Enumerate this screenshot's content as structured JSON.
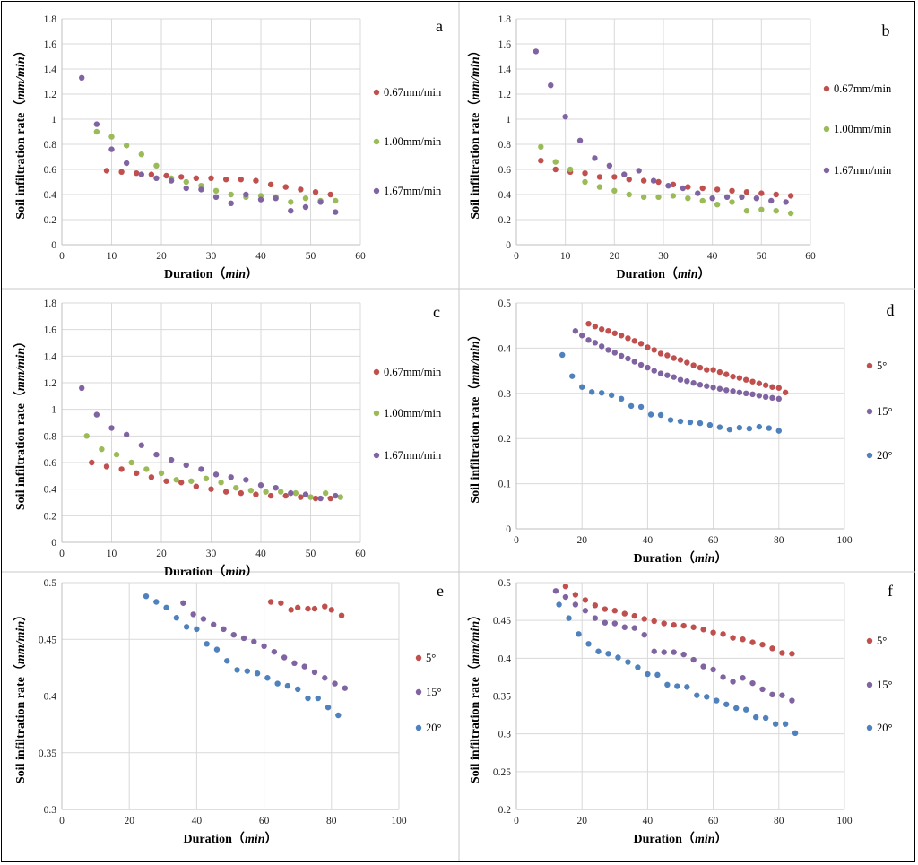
{
  "colors": {
    "red": "#C0504D",
    "green": "#9BBB59",
    "purple": "#8064A2",
    "blue": "#4F81BD"
  },
  "chart_data": [
    {
      "id": "a",
      "type": "scatter",
      "letter": "a",
      "xlabel": "Duration",
      "xunit": "min",
      "ylabel": "Soil infiltration rate",
      "yunit": "mm/min",
      "xlim": [
        0,
        60
      ],
      "xticks": [
        0,
        10,
        20,
        30,
        40,
        50,
        60
      ],
      "ylim": [
        0,
        1.8
      ],
      "yticks": [
        0,
        0.2,
        0.4,
        0.6,
        0.8,
        1,
        1.2,
        1.4,
        1.6,
        1.8
      ],
      "yticklabels": [
        "0",
        "0.2",
        "0.4",
        "0.6",
        "0.8",
        "1",
        "1.2",
        "1.4",
        "1.6",
        "1.8"
      ],
      "series": [
        {
          "name": "0.67mm/min",
          "color": "#C0504D",
          "x": [
            9,
            12,
            15,
            18,
            21,
            24,
            27,
            30,
            33,
            36,
            39,
            42,
            45,
            48,
            51,
            54
          ],
          "y": [
            0.59,
            0.58,
            0.57,
            0.56,
            0.55,
            0.54,
            0.53,
            0.53,
            0.52,
            0.52,
            0.51,
            0.48,
            0.46,
            0.44,
            0.42,
            0.4
          ]
        },
        {
          "name": "1.00mm/min",
          "color": "#9BBB59",
          "x": [
            7,
            10,
            13,
            16,
            19,
            22,
            25,
            28,
            31,
            34,
            37,
            40,
            43,
            46,
            49,
            52,
            55
          ],
          "y": [
            0.9,
            0.86,
            0.79,
            0.72,
            0.63,
            0.53,
            0.5,
            0.47,
            0.43,
            0.4,
            0.38,
            0.39,
            0.38,
            0.34,
            0.37,
            0.35,
            0.35
          ]
        },
        {
          "name": "1.67mm/min",
          "color": "#8064A2",
          "x": [
            4,
            7,
            10,
            13,
            16,
            19,
            22,
            25,
            28,
            31,
            34,
            37,
            40,
            43,
            46,
            49,
            52,
            55
          ],
          "y": [
            1.33,
            0.96,
            0.76,
            0.65,
            0.56,
            0.53,
            0.51,
            0.45,
            0.44,
            0.38,
            0.33,
            0.4,
            0.36,
            0.37,
            0.27,
            0.3,
            0.34,
            0.26
          ]
        }
      ]
    },
    {
      "id": "b",
      "type": "scatter",
      "letter": "b",
      "xlabel": "Duration",
      "xunit": "min",
      "ylabel": "Soil infiltration rate",
      "yunit": "mm/min",
      "xlim": [
        0,
        60
      ],
      "xticks": [
        0,
        10,
        20,
        30,
        40,
        50,
        60
      ],
      "ylim": [
        0,
        1.8
      ],
      "yticks": [
        0,
        0.2,
        0.4,
        0.6,
        0.8,
        1,
        1.2,
        1.4,
        1.6,
        1.8
      ],
      "yticklabels": [
        "0",
        "0.2",
        "0.4",
        "0.6",
        "0.8",
        "1",
        "1.2",
        "1.4",
        "1.6",
        "1.8"
      ],
      "series": [
        {
          "name": "0.67mm/min",
          "color": "#C0504D",
          "x": [
            5,
            8,
            11,
            14,
            17,
            20,
            23,
            26,
            29,
            32,
            35,
            38,
            41,
            44,
            47,
            50,
            53,
            56
          ],
          "y": [
            0.67,
            0.6,
            0.58,
            0.57,
            0.54,
            0.54,
            0.52,
            0.51,
            0.5,
            0.48,
            0.46,
            0.45,
            0.44,
            0.43,
            0.42,
            0.41,
            0.4,
            0.39
          ]
        },
        {
          "name": "1.00mm/min",
          "color": "#9BBB59",
          "x": [
            5,
            8,
            11,
            14,
            17,
            20,
            23,
            26,
            29,
            32,
            35,
            38,
            41,
            44,
            47,
            50,
            53,
            56
          ],
          "y": [
            0.78,
            0.66,
            0.6,
            0.5,
            0.46,
            0.43,
            0.4,
            0.38,
            0.38,
            0.39,
            0.37,
            0.35,
            0.32,
            0.34,
            0.27,
            0.28,
            0.27,
            0.25
          ]
        },
        {
          "name": "1.67mm/min",
          "color": "#8064A2",
          "x": [
            4,
            7,
            10,
            13,
            16,
            19,
            22,
            25,
            28,
            31,
            34,
            37,
            40,
            43,
            46,
            49,
            52,
            55
          ],
          "y": [
            1.54,
            1.27,
            1.02,
            0.83,
            0.69,
            0.63,
            0.56,
            0.59,
            0.51,
            0.47,
            0.45,
            0.41,
            0.37,
            0.38,
            0.38,
            0.37,
            0.35,
            0.34
          ]
        }
      ]
    },
    {
      "id": "c",
      "type": "scatter",
      "letter": "c",
      "xlabel": "Duration",
      "xunit": "min",
      "ylabel": "Soil infiltration rate",
      "yunit": "mm/min",
      "xlim": [
        0,
        60
      ],
      "xticks": [
        0,
        10,
        20,
        30,
        40,
        50,
        60
      ],
      "ylim": [
        0,
        1.8
      ],
      "yticks": [
        0,
        0.2,
        0.4,
        0.6,
        0.8,
        1,
        1.2,
        1.4,
        1.6,
        1.8
      ],
      "yticklabels": [
        "0",
        "0.2",
        "0.4",
        "0.6",
        "0.8",
        "1",
        "1.2",
        "1.4",
        "1.6",
        "1.8"
      ],
      "series": [
        {
          "name": "0.67mm/min",
          "color": "#C0504D",
          "x": [
            6,
            9,
            12,
            15,
            18,
            21,
            24,
            27,
            30,
            33,
            36,
            39,
            42,
            45,
            48,
            51,
            54
          ],
          "y": [
            0.6,
            0.57,
            0.55,
            0.52,
            0.49,
            0.46,
            0.45,
            0.42,
            0.4,
            0.38,
            0.37,
            0.36,
            0.35,
            0.35,
            0.34,
            0.33,
            0.33
          ]
        },
        {
          "name": "1.00mm/min",
          "color": "#9BBB59",
          "x": [
            5,
            8,
            11,
            14,
            17,
            20,
            23,
            26,
            29,
            32,
            35,
            38,
            41,
            44,
            47,
            50,
            53,
            56
          ],
          "y": [
            0.8,
            0.7,
            0.66,
            0.6,
            0.55,
            0.52,
            0.47,
            0.46,
            0.48,
            0.45,
            0.41,
            0.39,
            0.38,
            0.38,
            0.37,
            0.34,
            0.37,
            0.34
          ]
        },
        {
          "name": "1.67mm/min",
          "color": "#8064A2",
          "x": [
            4,
            7,
            10,
            13,
            16,
            19,
            22,
            25,
            28,
            31,
            34,
            37,
            40,
            43,
            46,
            49,
            52,
            55
          ],
          "y": [
            1.16,
            0.96,
            0.86,
            0.81,
            0.73,
            0.66,
            0.62,
            0.58,
            0.55,
            0.51,
            0.49,
            0.47,
            0.43,
            0.41,
            0.37,
            0.36,
            0.33,
            0.35
          ]
        }
      ]
    },
    {
      "id": "d",
      "type": "scatter",
      "letter": "d",
      "xlabel": "Duration",
      "xunit": "min",
      "ylabel": "Soil infiltration rate",
      "yunit": "mm/min",
      "xlim": [
        0,
        100
      ],
      "xticks": [
        0,
        20,
        40,
        60,
        80,
        100
      ],
      "ylim": [
        0,
        0.5
      ],
      "yticks": [
        0,
        0.1,
        0.2,
        0.3,
        0.4,
        0.5
      ],
      "yticklabels": [
        "0",
        "0.1",
        "0.2",
        "0.3",
        "0.4",
        "0.5"
      ],
      "series": [
        {
          "name": "5°",
          "color": "#C0504D",
          "x": [
            22,
            24,
            26,
            28,
            30,
            32,
            34,
            36,
            38,
            40,
            42,
            44,
            46,
            48,
            50,
            52,
            54,
            56,
            58,
            60,
            62,
            64,
            66,
            68,
            70,
            72,
            74,
            76,
            78,
            80,
            82
          ],
          "y": [
            0.454,
            0.448,
            0.442,
            0.438,
            0.433,
            0.428,
            0.422,
            0.416,
            0.41,
            0.402,
            0.396,
            0.388,
            0.384,
            0.378,
            0.374,
            0.368,
            0.362,
            0.357,
            0.352,
            0.352,
            0.347,
            0.342,
            0.337,
            0.334,
            0.33,
            0.326,
            0.322,
            0.318,
            0.314,
            0.312,
            0.302
          ]
        },
        {
          "name": "15°",
          "color": "#8064A2",
          "x": [
            18,
            20,
            22,
            24,
            26,
            28,
            30,
            32,
            34,
            36,
            38,
            40,
            42,
            44,
            46,
            48,
            50,
            52,
            54,
            56,
            58,
            60,
            62,
            64,
            66,
            68,
            70,
            72,
            74,
            76,
            78,
            80
          ],
          "y": [
            0.438,
            0.428,
            0.418,
            0.412,
            0.404,
            0.396,
            0.39,
            0.383,
            0.377,
            0.37,
            0.363,
            0.357,
            0.35,
            0.344,
            0.34,
            0.336,
            0.33,
            0.327,
            0.323,
            0.319,
            0.316,
            0.313,
            0.31,
            0.307,
            0.305,
            0.302,
            0.3,
            0.298,
            0.295,
            0.292,
            0.29,
            0.288
          ]
        },
        {
          "name": "20°",
          "color": "#4F81BD",
          "x": [
            14,
            17,
            20,
            23,
            26,
            29,
            32,
            35,
            38,
            41,
            44,
            47,
            50,
            53,
            56,
            59,
            62,
            65,
            68,
            71,
            74,
            77,
            80
          ],
          "y": [
            0.385,
            0.338,
            0.314,
            0.303,
            0.301,
            0.296,
            0.288,
            0.272,
            0.27,
            0.253,
            0.252,
            0.241,
            0.238,
            0.236,
            0.234,
            0.23,
            0.225,
            0.22,
            0.224,
            0.222,
            0.226,
            0.223,
            0.217
          ]
        }
      ]
    },
    {
      "id": "e",
      "type": "scatter",
      "letter": "e",
      "xlabel": "Duration",
      "xunit": "min",
      "ylabel": "Soil infiltration rate",
      "yunit": "mm/min",
      "xlim": [
        0,
        100
      ],
      "xticks": [
        0,
        20,
        40,
        60,
        80,
        100
      ],
      "ylim": [
        0.3,
        0.5
      ],
      "yticks": [
        0.3,
        0.35,
        0.4,
        0.45,
        0.5
      ],
      "yticklabels": [
        "0.3",
        "0.35",
        "0.4",
        "0.45",
        "0.5"
      ],
      "series": [
        {
          "name": "5°",
          "color": "#C0504D",
          "x": [
            62,
            65,
            68,
            70,
            73,
            75,
            78,
            80,
            83
          ],
          "y": [
            0.483,
            0.482,
            0.476,
            0.478,
            0.477,
            0.477,
            0.479,
            0.476,
            0.471
          ]
        },
        {
          "name": "15°",
          "color": "#8064A2",
          "x": [
            36,
            39,
            42,
            45,
            48,
            51,
            54,
            57,
            60,
            63,
            66,
            69,
            72,
            75,
            78,
            81,
            84
          ],
          "y": [
            0.482,
            0.472,
            0.468,
            0.463,
            0.459,
            0.454,
            0.451,
            0.448,
            0.444,
            0.439,
            0.434,
            0.429,
            0.426,
            0.421,
            0.416,
            0.411,
            0.407
          ]
        },
        {
          "name": "20°",
          "color": "#4F81BD",
          "x": [
            25,
            28,
            31,
            34,
            37,
            40,
            43,
            46,
            49,
            52,
            55,
            58,
            61,
            64,
            67,
            70,
            73,
            76,
            79,
            82
          ],
          "y": [
            0.488,
            0.483,
            0.478,
            0.469,
            0.461,
            0.459,
            0.446,
            0.441,
            0.431,
            0.423,
            0.422,
            0.42,
            0.416,
            0.411,
            0.409,
            0.406,
            0.398,
            0.398,
            0.39,
            0.383
          ]
        }
      ]
    },
    {
      "id": "f",
      "type": "scatter",
      "letter": "f",
      "xlabel": "Duration",
      "xunit": "min",
      "ylabel": "Soil infiltration rate",
      "yunit": "mm/min",
      "xlim": [
        0,
        100
      ],
      "xticks": [
        0,
        20,
        40,
        60,
        80,
        100
      ],
      "ylim": [
        0.2,
        0.5
      ],
      "yticks": [
        0.2,
        0.25,
        0.3,
        0.35,
        0.4,
        0.45,
        0.5
      ],
      "yticklabels": [
        "0.2",
        "0.25",
        "0.3",
        "0.35",
        "0.4",
        "0.45",
        "0.5"
      ],
      "series": [
        {
          "name": "5°",
          "color": "#C0504D",
          "x": [
            15,
            18,
            21,
            24,
            27,
            30,
            33,
            36,
            39,
            42,
            45,
            48,
            51,
            54,
            57,
            60,
            63,
            66,
            69,
            72,
            75,
            78,
            81,
            84
          ],
          "y": [
            0.495,
            0.484,
            0.477,
            0.47,
            0.465,
            0.463,
            0.459,
            0.456,
            0.452,
            0.449,
            0.446,
            0.444,
            0.443,
            0.441,
            0.438,
            0.434,
            0.432,
            0.427,
            0.425,
            0.421,
            0.418,
            0.413,
            0.407,
            0.406
          ]
        },
        {
          "name": "15°",
          "color": "#8064A2",
          "x": [
            12,
            15,
            18,
            21,
            24,
            27,
            30,
            33,
            36,
            39,
            42,
            45,
            48,
            51,
            54,
            57,
            60,
            63,
            66,
            69,
            72,
            75,
            78,
            81,
            84
          ],
          "y": [
            0.489,
            0.481,
            0.471,
            0.463,
            0.453,
            0.447,
            0.446,
            0.441,
            0.44,
            0.431,
            0.409,
            0.408,
            0.408,
            0.405,
            0.398,
            0.389,
            0.385,
            0.375,
            0.369,
            0.374,
            0.367,
            0.359,
            0.352,
            0.351,
            0.344
          ]
        },
        {
          "name": "20°",
          "color": "#4F81BD",
          "x": [
            13,
            16,
            19,
            22,
            25,
            28,
            31,
            34,
            37,
            40,
            43,
            46,
            49,
            52,
            55,
            58,
            61,
            64,
            67,
            70,
            73,
            76,
            79,
            82,
            85
          ],
          "y": [
            0.471,
            0.453,
            0.432,
            0.419,
            0.409,
            0.406,
            0.401,
            0.395,
            0.388,
            0.379,
            0.378,
            0.365,
            0.363,
            0.362,
            0.351,
            0.349,
            0.344,
            0.339,
            0.334,
            0.332,
            0.322,
            0.321,
            0.313,
            0.313,
            0.301
          ]
        }
      ]
    }
  ]
}
